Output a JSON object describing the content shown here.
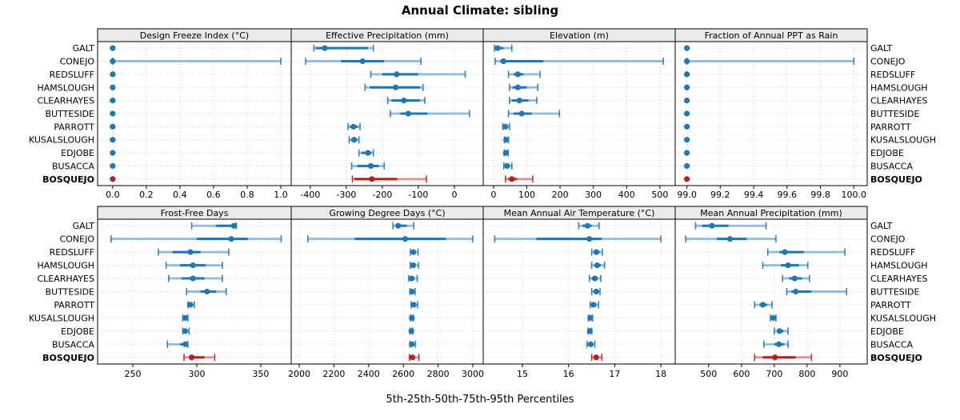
{
  "title": "Annual Climate: sibling",
  "caption": "5th-25th-50th-75th-95th Percentiles",
  "colors": {
    "series_blue": "#1f77b4",
    "series_red": "#b22222",
    "grid": "#c9c9c9",
    "panel_border": "#000000",
    "header_fill": "#ebebeb",
    "text": "#000000",
    "background": "#ffffff"
  },
  "sites": [
    "GALT",
    "CONEJO",
    "REDSLUFF",
    "HAMSLOUGH",
    "CLEARHAYES",
    "BUTTESIDE",
    "PARROTT",
    "KUSALSLOUGH",
    "EDJOBE",
    "BUSACCA",
    "BOSQUEJO"
  ],
  "highlight_site": "BOSQUEJO",
  "chart_data": {
    "type": "percentile-dot-whisker-trellis",
    "layout": "2 rows x 4 columns, shared site category axis, grid dotted, site labels on both sides",
    "percentiles": [
      5,
      25,
      50,
      75,
      95
    ],
    "sites": [
      "GALT",
      "CONEJO",
      "REDSLUFF",
      "HAMSLOUGH",
      "CLEARHAYES",
      "BUTTESIDE",
      "PARROTT",
      "KUSALSLOUGH",
      "EDJOBE",
      "BUSACCA",
      "BOSQUEJO"
    ],
    "panels": [
      {
        "label": "Design Freeze Index (°C)",
        "row": 0,
        "xlim": [
          -0.09,
          1.062
        ],
        "tick_values": [
          0.0,
          0.2,
          0.4,
          0.6,
          0.8,
          1.0
        ],
        "tick_labels": [
          "0.0",
          "0.2",
          "0.4",
          "0.6",
          "0.8",
          "1.0"
        ],
        "values": [
          [
            0,
            0,
            0,
            0,
            0
          ],
          [
            0,
            0,
            0,
            0,
            1.0
          ],
          [
            0,
            0,
            0,
            0,
            0
          ],
          [
            0,
            0,
            0,
            0,
            0
          ],
          [
            0,
            0,
            0,
            0,
            0
          ],
          [
            0,
            0,
            0,
            0,
            0
          ],
          [
            0,
            0,
            0,
            0,
            0
          ],
          [
            0,
            0,
            0,
            0,
            0
          ],
          [
            0,
            0,
            0,
            0,
            0
          ],
          [
            0,
            0,
            0,
            0,
            0
          ],
          [
            0,
            0,
            0,
            0,
            0
          ]
        ]
      },
      {
        "label": "Effective Precipitation (mm)",
        "row": 0,
        "xlim": [
          -453,
          80
        ],
        "tick_values": [
          -400,
          -300,
          -200,
          -100,
          0
        ],
        "tick_labels": [
          "-400",
          "-300",
          "-200",
          "-100",
          "0"
        ],
        "values": [
          [
            -390,
            -385,
            -360,
            -240,
            -225
          ],
          [
            -413,
            -315,
            -255,
            -195,
            -93
          ],
          [
            -232,
            -200,
            -160,
            -100,
            30
          ],
          [
            -248,
            -235,
            -163,
            -95,
            -87
          ],
          [
            -185,
            -175,
            -140,
            -95,
            -82
          ],
          [
            -178,
            -150,
            -128,
            -75,
            42
          ],
          [
            -295,
            -290,
            -280,
            -268,
            -262
          ],
          [
            -292,
            -287,
            -278,
            -270,
            -265
          ],
          [
            -265,
            -258,
            -240,
            -230,
            -225
          ],
          [
            -285,
            -270,
            -232,
            -210,
            -195
          ],
          [
            -283,
            -277,
            -229,
            -159,
            -78
          ]
        ]
      },
      {
        "label": "Elevation (m)",
        "row": 0,
        "xlim": [
          -31,
          546
        ],
        "tick_values": [
          0,
          100,
          200,
          300,
          400,
          500
        ],
        "tick_labels": [
          "0",
          "100",
          "200",
          "300",
          "400",
          "500"
        ],
        "values": [
          [
            3,
            5,
            12,
            30,
            55
          ],
          [
            5,
            20,
            30,
            150,
            510
          ],
          [
            45,
            60,
            73,
            90,
            140
          ],
          [
            48,
            57,
            73,
            100,
            133
          ],
          [
            48,
            55,
            78,
            105,
            130
          ],
          [
            45,
            60,
            85,
            115,
            198
          ],
          [
            28,
            32,
            36,
            42,
            48
          ],
          [
            33,
            35,
            38,
            42,
            45
          ],
          [
            32,
            34,
            37,
            40,
            44
          ],
          [
            31,
            35,
            41,
            48,
            55
          ],
          [
            36,
            45,
            55,
            70,
            118
          ]
        ]
      },
      {
        "label": "Fraction of Annual PPT as Rain",
        "row": 0,
        "xlim": [
          98.93,
          100.08
        ],
        "tick_values": [
          99.0,
          99.2,
          99.4,
          99.6,
          99.8,
          100.0
        ],
        "tick_labels": [
          "99.0",
          "99.2",
          "99.4",
          "99.6",
          "99.8",
          "100.0"
        ],
        "values": [
          [
            99,
            99,
            99,
            99,
            99
          ],
          [
            99,
            99,
            99,
            99,
            100
          ],
          [
            99,
            99,
            99,
            99,
            99
          ],
          [
            99,
            99,
            99,
            99,
            99
          ],
          [
            99,
            99,
            99,
            99,
            99
          ],
          [
            99,
            99,
            99,
            99,
            99
          ],
          [
            99,
            99,
            99,
            99,
            99
          ],
          [
            99,
            99,
            99,
            99,
            99
          ],
          [
            99,
            99,
            99,
            99,
            99
          ],
          [
            99,
            99,
            99,
            99,
            99
          ],
          [
            99,
            99,
            99,
            99,
            99
          ]
        ]
      },
      {
        "label": "Frost-Free Days",
        "row": 1,
        "xlim": [
          222.5,
          373.8
        ],
        "tick_values": [
          250,
          300,
          350
        ],
        "tick_labels": [
          "250",
          "300",
          "350"
        ],
        "values": [
          [
            296,
            315,
            329,
            330,
            331
          ],
          [
            233,
            300,
            327,
            340,
            366
          ],
          [
            270,
            281,
            295,
            303,
            325
          ],
          [
            276,
            287,
            297,
            307,
            320
          ],
          [
            278,
            288,
            297,
            306,
            320
          ],
          [
            292,
            303,
            308,
            315,
            323
          ],
          [
            293,
            294,
            295,
            297,
            298
          ],
          [
            289,
            290,
            291,
            292,
            293
          ],
          [
            289,
            290,
            291,
            293,
            294
          ],
          [
            277,
            287,
            291,
            292,
            293
          ],
          [
            290,
            295,
            296,
            306,
            314
          ]
        ]
      },
      {
        "label": "Growing Degree Days (°C)",
        "row": 1,
        "xlim": [
          1954,
          3060
        ],
        "tick_values": [
          2000,
          2200,
          2400,
          2600,
          2800,
          3000
        ],
        "tick_labels": [
          "2000",
          "2200",
          "2400",
          "2600",
          "2800",
          "3000"
        ],
        "values": [
          [
            2540,
            2555,
            2570,
            2620,
            2660
          ],
          [
            2050,
            2320,
            2610,
            2845,
            3000
          ],
          [
            2640,
            2650,
            2658,
            2670,
            2685
          ],
          [
            2640,
            2650,
            2657,
            2670,
            2688
          ],
          [
            2630,
            2640,
            2648,
            2660,
            2680
          ],
          [
            2638,
            2645,
            2650,
            2658,
            2668
          ],
          [
            2645,
            2652,
            2660,
            2670,
            2682
          ],
          [
            2640,
            2645,
            2649,
            2653,
            2658
          ],
          [
            2638,
            2642,
            2646,
            2650,
            2654
          ],
          [
            2638,
            2644,
            2649,
            2658,
            2670
          ],
          [
            2635,
            2645,
            2652,
            2665,
            2690
          ]
        ]
      },
      {
        "label": "Mean Annual Air Temperature (°C)",
        "row": 1,
        "xlim": [
          14.15,
          18.31
        ],
        "tick_values": [
          15,
          16,
          17,
          18
        ],
        "tick_labels": [
          "15",
          "16",
          "17",
          "18"
        ],
        "values": [
          [
            16.22,
            16.3,
            16.41,
            16.5,
            16.66
          ],
          [
            14.4,
            15.3,
            16.45,
            16.72,
            18.0
          ],
          [
            16.5,
            16.55,
            16.6,
            16.67,
            16.73
          ],
          [
            16.5,
            16.56,
            16.62,
            16.7,
            16.78
          ],
          [
            16.45,
            16.5,
            16.57,
            16.63,
            16.7
          ],
          [
            16.5,
            16.55,
            16.6,
            16.64,
            16.68
          ],
          [
            16.47,
            16.5,
            16.54,
            16.6,
            16.65
          ],
          [
            16.43,
            16.45,
            16.47,
            16.5,
            16.52
          ],
          [
            16.42,
            16.44,
            16.46,
            16.48,
            16.5
          ],
          [
            16.4,
            16.44,
            16.48,
            16.53,
            16.57
          ],
          [
            16.5,
            16.55,
            16.6,
            16.65,
            16.72
          ]
        ]
      },
      {
        "label": "Mean Annual Precipitation (mm)",
        "row": 1,
        "xlim": [
          398,
          983
        ],
        "tick_values": [
          500,
          600,
          700,
          800,
          900
        ],
        "tick_labels": [
          "500",
          "600",
          "700",
          "800",
          "900"
        ],
        "values": [
          [
            460,
            480,
            510,
            560,
            675
          ],
          [
            430,
            525,
            565,
            615,
            705
          ],
          [
            680,
            715,
            732,
            790,
            915
          ],
          [
            665,
            720,
            742,
            775,
            802
          ],
          [
            725,
            745,
            762,
            785,
            807
          ],
          [
            738,
            752,
            765,
            812,
            920
          ],
          [
            640,
            655,
            665,
            678,
            693
          ],
          [
            688,
            693,
            697,
            701,
            705
          ],
          [
            700,
            708,
            716,
            728,
            742
          ],
          [
            668,
            700,
            714,
            730,
            742
          ],
          [
            640,
            665,
            702,
            765,
            813
          ]
        ]
      }
    ]
  }
}
